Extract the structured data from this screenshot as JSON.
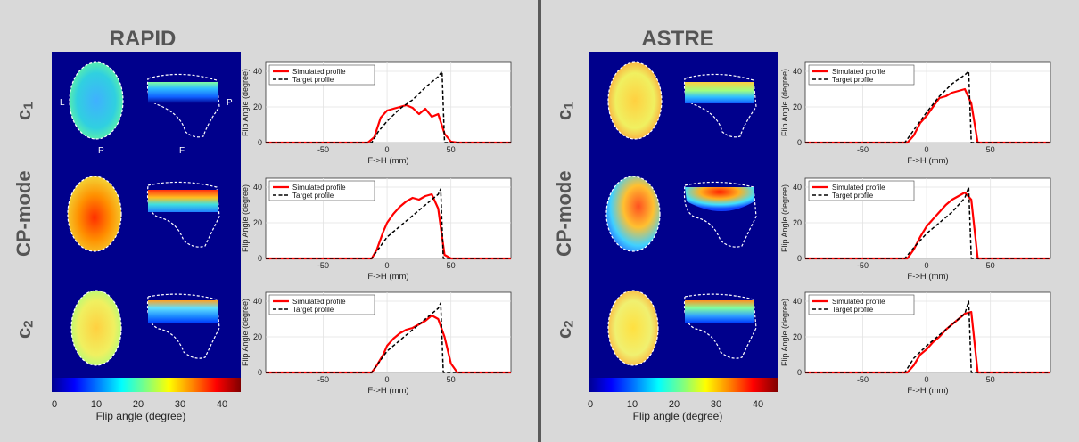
{
  "panels": [
    {
      "title": "RAPID",
      "orientation_labels": [
        "L",
        "P",
        "P",
        "F"
      ],
      "colorbar": {
        "ticks": [
          "0",
          "10",
          "20",
          "30",
          "40"
        ],
        "label": "Flip angle (degree)"
      }
    },
    {
      "title": "ASTRE",
      "orientation_labels": [],
      "colorbar": {
        "ticks": [
          "0",
          "10",
          "20",
          "30",
          "40"
        ],
        "label": "Flip angle (degree)"
      }
    }
  ],
  "row_labels": {
    "c1": "c",
    "c1_sub": "1",
    "cp": "CP-mode",
    "c2": "c",
    "c2_sub": "2"
  },
  "chart_data": [
    {
      "id": "rapid-c1",
      "type": "line",
      "xlabel": "F->H (mm)",
      "ylabel": "Flip Angle (degree)",
      "xlim": [
        -95,
        97
      ],
      "ylim": [
        0,
        45
      ],
      "x_ticks": [
        -50,
        0,
        50
      ],
      "y_ticks": [
        0,
        20,
        40
      ],
      "grid": true,
      "legend": "top-left",
      "series": [
        {
          "name": "Simulated profile",
          "color": "#ff0000",
          "style": "solid",
          "x": [
            -95,
            -15,
            -10,
            -5,
            0,
            5,
            10,
            15,
            20,
            25,
            30,
            35,
            40,
            45,
            50,
            55,
            97
          ],
          "y": [
            0,
            0,
            3,
            14,
            18,
            19,
            20,
            21,
            19.5,
            16,
            19,
            14.5,
            16,
            5,
            0.5,
            0,
            0
          ]
        },
        {
          "name": "Target profile",
          "color": "#000000",
          "style": "dashed",
          "x": [
            -95,
            -12,
            -7,
            0,
            10,
            20,
            30,
            40,
            43,
            45,
            97
          ],
          "y": [
            0,
            0,
            6,
            12,
            19,
            24,
            31,
            37,
            40,
            0,
            0
          ]
        }
      ]
    },
    {
      "id": "rapid-cp",
      "type": "line",
      "xlabel": "F->H (mm)",
      "ylabel": "Flip Angle (degree)",
      "xlim": [
        -95,
        97
      ],
      "ylim": [
        0,
        45
      ],
      "x_ticks": [
        -50,
        0,
        50
      ],
      "y_ticks": [
        0,
        20,
        40
      ],
      "grid": true,
      "legend": "top-left",
      "series": [
        {
          "name": "Simulated profile",
          "color": "#ff0000",
          "style": "solid",
          "x": [
            -95,
            -12,
            -8,
            -3,
            0,
            5,
            10,
            15,
            20,
            25,
            30,
            35,
            40,
            45,
            50,
            97
          ],
          "y": [
            0,
            0,
            5,
            15,
            20,
            25,
            29,
            32,
            34,
            33,
            35,
            36,
            28,
            2,
            0,
            0
          ]
        },
        {
          "name": "Target profile",
          "color": "#000000",
          "style": "dashed",
          "x": [
            -95,
            -12,
            -7,
            0,
            10,
            20,
            30,
            40,
            42,
            44,
            97
          ],
          "y": [
            0,
            0,
            5,
            12,
            18,
            24,
            30,
            36,
            39,
            0,
            0
          ]
        }
      ]
    },
    {
      "id": "rapid-c2",
      "type": "line",
      "xlabel": "F->H (mm)",
      "ylabel": "Flip Angle (degree)",
      "xlim": [
        -95,
        97
      ],
      "ylim": [
        0,
        45
      ],
      "x_ticks": [
        -50,
        0,
        50
      ],
      "y_ticks": [
        0,
        20,
        40
      ],
      "grid": true,
      "legend": "top-left",
      "series": [
        {
          "name": "Simulated profile",
          "color": "#ff0000",
          "style": "solid",
          "x": [
            -95,
            -12,
            -8,
            -3,
            0,
            5,
            10,
            15,
            20,
            25,
            30,
            35,
            40,
            45,
            50,
            55,
            97
          ],
          "y": [
            0,
            0,
            4,
            10,
            15,
            19,
            22,
            24,
            25,
            27,
            29,
            32,
            30,
            20,
            5,
            0,
            0
          ]
        },
        {
          "name": "Target profile",
          "color": "#000000",
          "style": "dashed",
          "x": [
            -95,
            -12,
            -7,
            0,
            10,
            20,
            30,
            40,
            42,
            44,
            97
          ],
          "y": [
            0,
            0,
            5,
            12,
            18,
            24,
            30,
            36,
            39,
            0,
            0
          ]
        }
      ]
    },
    {
      "id": "astre-c1",
      "type": "line",
      "xlabel": "F->H (mm)",
      "ylabel": "Flip Angle (degree)",
      "xlim": [
        -95,
        97
      ],
      "ylim": [
        0,
        45
      ],
      "x_ticks": [
        -50,
        0,
        50
      ],
      "y_ticks": [
        0,
        20,
        40
      ],
      "grid": true,
      "legend": "top-left",
      "series": [
        {
          "name": "Simulated profile",
          "color": "#ff0000",
          "style": "solid",
          "x": [
            -95,
            -15,
            -10,
            -5,
            0,
            5,
            10,
            15,
            20,
            25,
            30,
            35,
            40,
            97
          ],
          "y": [
            0,
            0,
            4,
            11,
            15,
            20,
            25,
            26,
            28,
            29,
            30,
            22,
            0,
            0
          ]
        },
        {
          "name": "Target profile",
          "color": "#000000",
          "style": "dashed",
          "x": [
            -95,
            -17,
            -10,
            0,
            10,
            20,
            30,
            33,
            35,
            97
          ],
          "y": [
            0,
            0,
            7,
            17,
            26,
            33,
            38,
            40,
            0,
            0
          ]
        }
      ]
    },
    {
      "id": "astre-cp",
      "type": "line",
      "xlabel": "F->H (mm)",
      "ylabel": "Flip Angle (degree)",
      "xlim": [
        -95,
        97
      ],
      "ylim": [
        0,
        45
      ],
      "x_ticks": [
        -50,
        0,
        50
      ],
      "y_ticks": [
        0,
        20,
        40
      ],
      "grid": true,
      "legend": "top-left",
      "series": [
        {
          "name": "Simulated profile",
          "color": "#ff0000",
          "style": "solid",
          "x": [
            -95,
            -15,
            -10,
            -5,
            0,
            5,
            10,
            15,
            20,
            25,
            30,
            35,
            40,
            97
          ],
          "y": [
            0,
            0,
            5,
            12,
            18,
            22,
            26,
            30,
            33,
            35,
            37,
            33,
            0,
            0
          ]
        },
        {
          "name": "Target profile",
          "color": "#000000",
          "style": "dashed",
          "x": [
            -95,
            -17,
            -10,
            0,
            10,
            20,
            30,
            33,
            35,
            97
          ],
          "y": [
            0,
            0,
            6,
            14,
            20,
            26,
            34,
            40,
            0,
            0
          ]
        }
      ]
    },
    {
      "id": "astre-c2",
      "type": "line",
      "xlabel": "F->H (mm)",
      "ylabel": "Flip Angle (degree)",
      "xlim": [
        -95,
        97
      ],
      "ylim": [
        0,
        45
      ],
      "x_ticks": [
        -50,
        0,
        50
      ],
      "y_ticks": [
        0,
        20,
        40
      ],
      "grid": true,
      "legend": "top-left",
      "series": [
        {
          "name": "Simulated profile",
          "color": "#ff0000",
          "style": "solid",
          "x": [
            -95,
            -15,
            -10,
            -5,
            0,
            5,
            10,
            15,
            20,
            25,
            30,
            35,
            40,
            97
          ],
          "y": [
            0,
            0,
            4,
            10,
            13,
            17,
            20,
            24,
            27,
            30,
            33,
            34,
            0,
            0
          ]
        },
        {
          "name": "Target profile",
          "color": "#000000",
          "style": "dashed",
          "x": [
            -95,
            -17,
            -10,
            0,
            10,
            20,
            30,
            33,
            35,
            97
          ],
          "y": [
            0,
            0,
            8,
            15,
            21,
            27,
            33,
            40,
            0,
            0
          ]
        }
      ]
    }
  ]
}
